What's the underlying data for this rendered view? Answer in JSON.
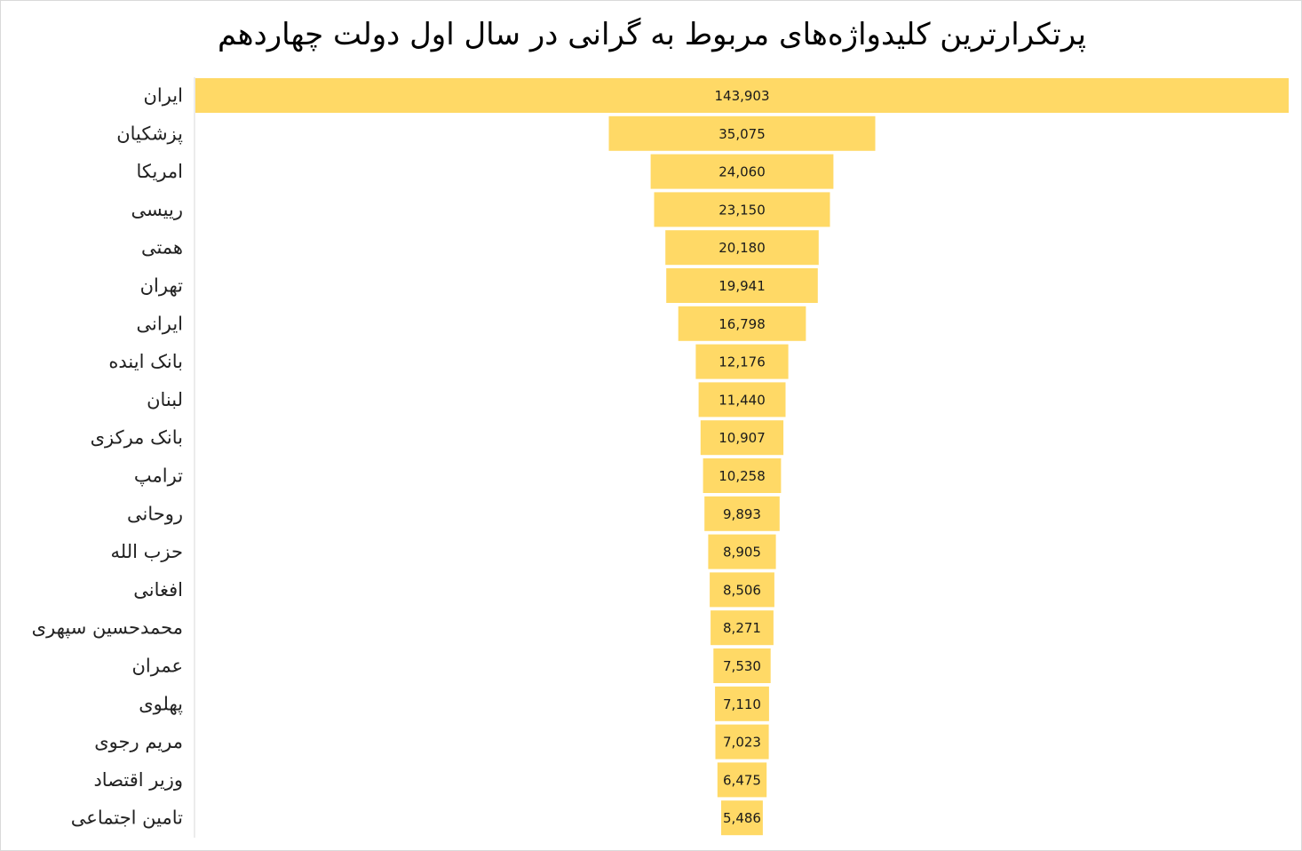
{
  "chart_data": {
    "type": "bar",
    "subtype": "funnel",
    "title": "پرتکرارترین کلیدواژه‌های مربوط به گرانی در سال اول دولت چهاردهم",
    "bar_color": "#FFD966",
    "categories": [
      "ایران",
      "پزشکیان",
      "امریکا",
      "رییسی",
      "همتی",
      "تهران",
      "ایرانی",
      "بانک اینده",
      "لبنان",
      "بانک مرکزی",
      "ترامپ",
      "روحانی",
      "حزب الله",
      "افغانی",
      "محمدحسین سپهری",
      "عمران",
      "پهلوی",
      "مریم رجوی",
      "وزیر اقتصاد",
      "تامین اجتماعی"
    ],
    "values": [
      143903,
      35075,
      24060,
      23150,
      20180,
      19941,
      16798,
      12176,
      11440,
      10907,
      10258,
      9893,
      8905,
      8506,
      8271,
      7530,
      7110,
      7023,
      6475,
      5486
    ],
    "value_labels": [
      "143,903",
      "35,075",
      "24,060",
      "23,150",
      "20,180",
      "19,941",
      "16,798",
      "12,176",
      "11,440",
      "10,907",
      "10,258",
      "9,893",
      "8,905",
      "8,506",
      "8,271",
      "7,530",
      "7,110",
      "7,023",
      "6,475",
      "5,486"
    ]
  }
}
